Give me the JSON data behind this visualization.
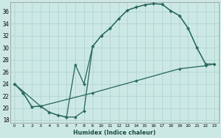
{
  "xlabel": "Humidex (Indice chaleur)",
  "bg_color": "#cce8e5",
  "grid_color": "#aacfcc",
  "line_color": "#2a6b5e",
  "xlim": [
    -0.5,
    23.5
  ],
  "ylim": [
    17.5,
    37.5
  ],
  "xticks": [
    0,
    1,
    2,
    3,
    4,
    5,
    6,
    7,
    8,
    9,
    10,
    11,
    12,
    13,
    14,
    15,
    16,
    17,
    18,
    19,
    20,
    21,
    22,
    23
  ],
  "yticks": [
    18,
    20,
    22,
    24,
    26,
    28,
    30,
    32,
    34,
    36
  ],
  "c1x": [
    0,
    1,
    2,
    3,
    4,
    5,
    6,
    7,
    8,
    9,
    10,
    11,
    12,
    13,
    14,
    15,
    16,
    17,
    18,
    19,
    20,
    21,
    22
  ],
  "c1y": [
    24.0,
    22.5,
    20.2,
    20.3,
    19.3,
    18.8,
    18.5,
    18.5,
    19.5,
    30.2,
    32.0,
    33.2,
    34.8,
    36.2,
    36.7,
    37.1,
    37.3,
    37.2,
    36.1,
    35.3,
    33.2,
    30.0,
    27.3
  ],
  "c2x": [
    0,
    1,
    2,
    3,
    4,
    5,
    6,
    7,
    8,
    9,
    10,
    11,
    12,
    13,
    14,
    15,
    16,
    17,
    18,
    19,
    20,
    21,
    22,
    23
  ],
  "c2y": [
    24.0,
    22.5,
    20.2,
    20.3,
    19.3,
    18.8,
    18.5,
    27.2,
    24.0,
    30.2,
    32.0,
    33.2,
    34.8,
    36.2,
    36.7,
    37.1,
    37.3,
    37.2,
    36.1,
    35.3,
    33.2,
    30.0,
    27.3,
    27.3
  ],
  "c3x": [
    0,
    3,
    9,
    14,
    19,
    22,
    23
  ],
  "c3y": [
    24.0,
    20.3,
    22.5,
    24.5,
    26.5,
    27.0,
    27.3
  ],
  "markersize": 2.5,
  "linewidth": 1.0
}
